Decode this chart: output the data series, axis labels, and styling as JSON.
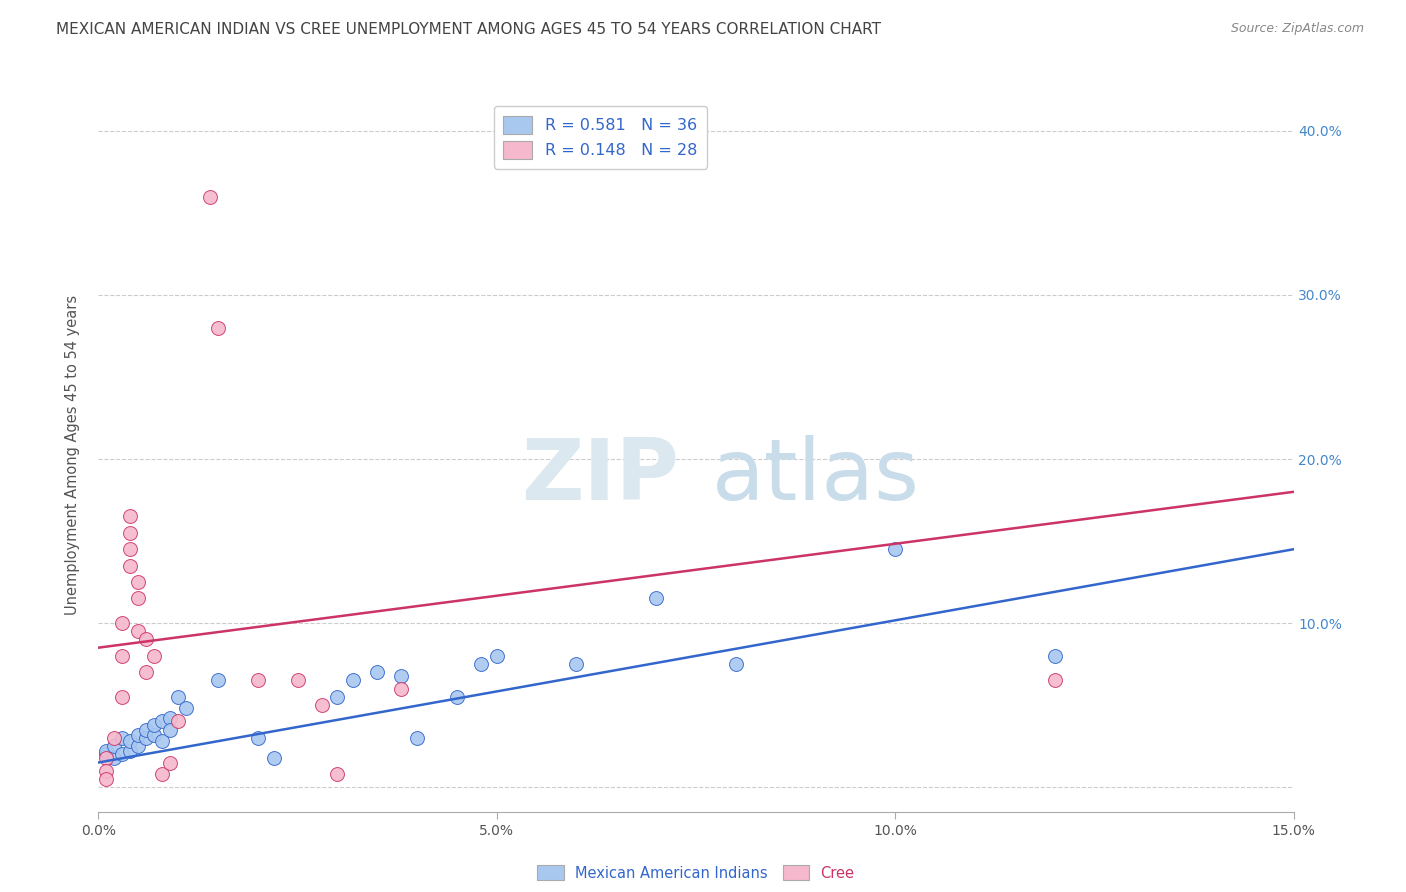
{
  "title": "MEXICAN AMERICAN INDIAN VS CREE UNEMPLOYMENT AMONG AGES 45 TO 54 YEARS CORRELATION CHART",
  "source": "Source: ZipAtlas.com",
  "ylabel": "Unemployment Among Ages 45 to 54 years",
  "xlim": [
    0.0,
    0.15
  ],
  "ylim": [
    -0.015,
    0.42
  ],
  "yticks": [
    0.0,
    0.1,
    0.2,
    0.3,
    0.4
  ],
  "xticks": [
    0.0,
    0.05,
    0.1,
    0.15
  ],
  "xtick_labels": [
    "0.0%",
    "5.0%",
    "10.0%",
    "15.0%"
  ],
  "ytick_labels_right": [
    "",
    "10.0%",
    "20.0%",
    "30.0%",
    "40.0%"
  ],
  "series1_color": "#a8c8f0",
  "series2_color": "#f5b8cc",
  "trendline1_color": "#3366cc",
  "trendline2_color": "#cc3366",
  "background_color": "#ffffff",
  "grid_color": "#cccccc",
  "title_color": "#444444",
  "right_axis_color": "#4488cc",
  "legend_label1": "Mexican American Indians",
  "legend_label2": "Cree",
  "legend_r1": "R = 0.581",
  "legend_n1": "N = 36",
  "legend_r2": "R = 0.148",
  "legend_n2": "N = 28",
  "blue_scatter": [
    [
      0.001,
      0.02
    ],
    [
      0.001,
      0.022
    ],
    [
      0.002,
      0.018
    ],
    [
      0.002,
      0.025
    ],
    [
      0.003,
      0.02
    ],
    [
      0.003,
      0.03
    ],
    [
      0.004,
      0.022
    ],
    [
      0.004,
      0.028
    ],
    [
      0.005,
      0.025
    ],
    [
      0.005,
      0.032
    ],
    [
      0.006,
      0.03
    ],
    [
      0.006,
      0.035
    ],
    [
      0.007,
      0.032
    ],
    [
      0.007,
      0.038
    ],
    [
      0.008,
      0.04
    ],
    [
      0.008,
      0.028
    ],
    [
      0.009,
      0.042
    ],
    [
      0.009,
      0.035
    ],
    [
      0.01,
      0.055
    ],
    [
      0.011,
      0.048
    ],
    [
      0.015,
      0.065
    ],
    [
      0.02,
      0.03
    ],
    [
      0.022,
      0.018
    ],
    [
      0.03,
      0.055
    ],
    [
      0.032,
      0.065
    ],
    [
      0.035,
      0.07
    ],
    [
      0.038,
      0.068
    ],
    [
      0.04,
      0.03
    ],
    [
      0.045,
      0.055
    ],
    [
      0.048,
      0.075
    ],
    [
      0.05,
      0.08
    ],
    [
      0.06,
      0.075
    ],
    [
      0.07,
      0.115
    ],
    [
      0.08,
      0.075
    ],
    [
      0.1,
      0.145
    ],
    [
      0.12,
      0.08
    ]
  ],
  "pink_scatter": [
    [
      0.001,
      0.018
    ],
    [
      0.001,
      0.01
    ],
    [
      0.001,
      0.005
    ],
    [
      0.002,
      0.03
    ],
    [
      0.003,
      0.055
    ],
    [
      0.003,
      0.08
    ],
    [
      0.003,
      0.1
    ],
    [
      0.004,
      0.165
    ],
    [
      0.004,
      0.145
    ],
    [
      0.004,
      0.155
    ],
    [
      0.004,
      0.135
    ],
    [
      0.005,
      0.095
    ],
    [
      0.005,
      0.115
    ],
    [
      0.005,
      0.125
    ],
    [
      0.006,
      0.07
    ],
    [
      0.006,
      0.09
    ],
    [
      0.007,
      0.08
    ],
    [
      0.008,
      0.008
    ],
    [
      0.009,
      0.015
    ],
    [
      0.01,
      0.04
    ],
    [
      0.014,
      0.36
    ],
    [
      0.015,
      0.28
    ],
    [
      0.02,
      0.065
    ],
    [
      0.025,
      0.065
    ],
    [
      0.028,
      0.05
    ],
    [
      0.03,
      0.008
    ],
    [
      0.038,
      0.06
    ],
    [
      0.12,
      0.065
    ]
  ],
  "trendline1_x": [
    0.0,
    0.15
  ],
  "trendline1_y": [
    0.015,
    0.145
  ],
  "trendline2_x": [
    0.0,
    0.15
  ],
  "trendline2_y": [
    0.085,
    0.18
  ]
}
